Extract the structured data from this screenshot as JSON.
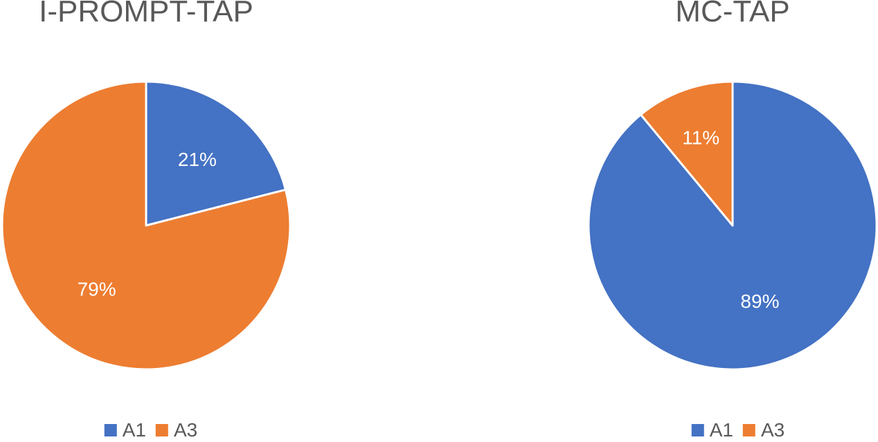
{
  "chart_data": [
    {
      "type": "pie",
      "title": "I-PROMPT-TAP",
      "categories": [
        "A1",
        "A3"
      ],
      "values": [
        21,
        79
      ],
      "labels": [
        "21%",
        "79%"
      ],
      "colors": [
        "#4472C4",
        "#ED7D31"
      ],
      "legend": [
        "A1",
        "A3"
      ],
      "legend_position": "bottom"
    },
    {
      "type": "pie",
      "title": "MC-TAP",
      "categories": [
        "A1",
        "A3"
      ],
      "values": [
        89,
        11
      ],
      "labels": [
        "89%",
        "11%"
      ],
      "colors": [
        "#4472C4",
        "#ED7D31"
      ],
      "legend": [
        "A1",
        "A3"
      ],
      "legend_position": "bottom"
    }
  ]
}
